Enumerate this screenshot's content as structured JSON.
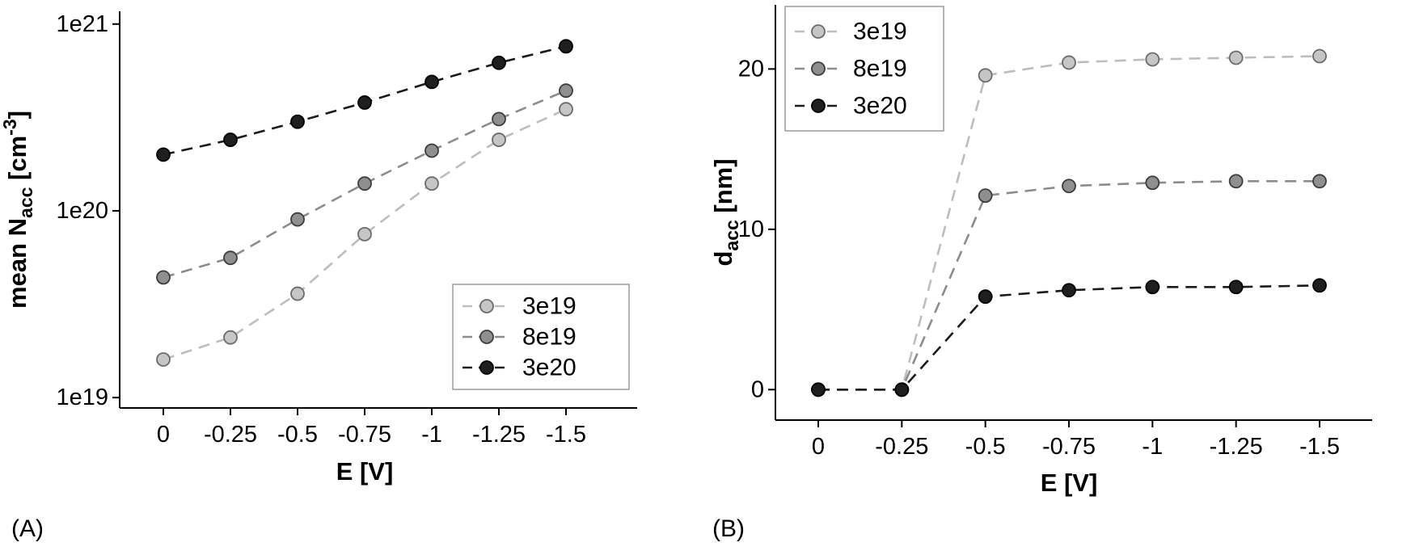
{
  "figure": {
    "background": "#ffffff"
  },
  "chart_data": [
    {
      "id": "A",
      "panel_label": "(A)",
      "type": "line",
      "yscale": "log",
      "xlabel": "E [V]",
      "ylabel_parts": [
        {
          "t": "mean N",
          "s": "n"
        },
        {
          "t": "acc",
          "s": "sub"
        },
        {
          "t": " [cm",
          "s": "n"
        },
        {
          "t": "-3",
          "s": "sup"
        },
        {
          "t": "]",
          "s": "n"
        }
      ],
      "x": [
        0,
        -0.25,
        -0.5,
        -0.75,
        -1,
        -1.25,
        -1.5
      ],
      "x_tick_labels": [
        "0",
        "-0.25",
        "-0.5",
        "-0.75",
        "-1",
        "-1.25",
        "-1.5"
      ],
      "ylim": [
        8.8e+18,
        1.17e+21
      ],
      "y_ticks": [
        1e+19,
        1e+20,
        1e+21
      ],
      "y_tick_labels": [
        "1e19",
        "1e20",
        "1e21"
      ],
      "grid": false,
      "legend_position": "bottom-right",
      "series": [
        {
          "name": "3e19",
          "line_color": "#bdbdbd",
          "marker_fill": "#c6c6c6",
          "marker_edge": "#6b6b6b",
          "values": [
            1.6e+19,
            2.1e+19,
            3.6e+19,
            7.5e+19,
            1.4e+20,
            2.4e+20,
            3.5e+20
          ]
        },
        {
          "name": "8e19",
          "line_color": "#8c8c8c",
          "marker_fill": "#8f8f8f",
          "marker_edge": "#3c3c3c",
          "values": [
            4.4e+19,
            5.6e+19,
            9e+19,
            1.4e+20,
            2.1e+20,
            3.1e+20,
            4.4e+20
          ]
        },
        {
          "name": "3e20",
          "line_color": "#1b1b1b",
          "marker_fill": "#1f1f1f",
          "marker_edge": "#000000",
          "values": [
            2e+20,
            2.4e+20,
            3e+20,
            3.8e+20,
            4.9e+20,
            6.2e+20,
            7.6e+20
          ]
        }
      ]
    },
    {
      "id": "B",
      "panel_label": "(B)",
      "type": "line",
      "yscale": "linear",
      "xlabel": "E [V]",
      "ylabel_parts": [
        {
          "t": "d",
          "s": "n"
        },
        {
          "t": "acc",
          "s": "sub"
        },
        {
          "t": " [nm]",
          "s": "n"
        }
      ],
      "x": [
        0,
        -0.25,
        -0.5,
        -0.75,
        -1,
        -1.25,
        -1.5
      ],
      "x_tick_labels": [
        "0",
        "-0.25",
        "-0.5",
        "-0.75",
        "-1",
        "-1.25",
        "-1.5"
      ],
      "ylim": [
        -1.9,
        24
      ],
      "y_ticks": [
        0,
        10,
        20
      ],
      "y_tick_labels": [
        "0",
        "10",
        "20"
      ],
      "grid": false,
      "legend_position": "top-left",
      "series": [
        {
          "name": "3e19",
          "line_color": "#bdbdbd",
          "marker_fill": "#c6c6c6",
          "marker_edge": "#6b6b6b",
          "values": [
            0,
            0,
            19.6,
            20.4,
            20.6,
            20.7,
            20.8
          ]
        },
        {
          "name": "8e19",
          "line_color": "#8c8c8c",
          "marker_fill": "#8f8f8f",
          "marker_edge": "#3c3c3c",
          "values": [
            0,
            0,
            12.1,
            12.7,
            12.9,
            13.0,
            13.0
          ]
        },
        {
          "name": "3e20",
          "line_color": "#1b1b1b",
          "marker_fill": "#1f1f1f",
          "marker_edge": "#000000",
          "values": [
            0,
            0,
            5.8,
            6.2,
            6.4,
            6.4,
            6.5
          ]
        }
      ]
    }
  ]
}
